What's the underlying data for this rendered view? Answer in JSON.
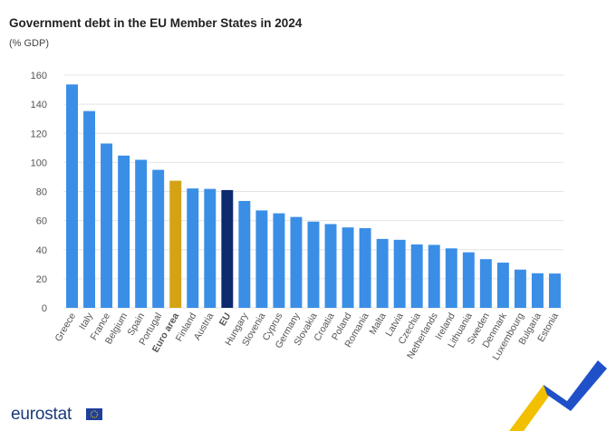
{
  "title": "Government debt in the EU Member States in 2024",
  "subtitle": "(% GDP)",
  "logo": "eurostat",
  "colors": {
    "default_bar": "#3a8ee6",
    "euro_area_bar": "#d3a314",
    "eu_bar": "#0e2a6e",
    "grid": "#e4e4e4",
    "axis_text": "#555555",
    "accent_yellow": "#f2c000",
    "accent_blue": "#1f50c8"
  },
  "chart_data": {
    "type": "bar",
    "ylim": [
      0,
      160
    ],
    "yticks": [
      0,
      20,
      40,
      60,
      80,
      100,
      120,
      140,
      160
    ],
    "grid": true,
    "categories": [
      "Greece",
      "Italy",
      "France",
      "Belgium",
      "Spain",
      "Portugal",
      "Euro area",
      "Finland",
      "Austria",
      "EU",
      "Hungary",
      "Slovenia",
      "Cyprus",
      "Germany",
      "Slovakia",
      "Croatia",
      "Poland",
      "Romania",
      "Malta",
      "Latvia",
      "Czechia",
      "Netherlands",
      "Ireland",
      "Lithuania",
      "Sweden",
      "Denmark",
      "Luxembourg",
      "Bulgaria",
      "Estonia"
    ],
    "values": [
      153.6,
      135.3,
      113.0,
      104.7,
      101.8,
      94.9,
      87.4,
      82.1,
      81.8,
      81.0,
      73.5,
      67.0,
      65.0,
      62.5,
      59.3,
      57.6,
      55.3,
      54.8,
      47.4,
      46.8,
      43.6,
      43.3,
      40.9,
      38.2,
      33.5,
      31.1,
      26.3,
      23.8,
      23.6
    ],
    "highlight": {
      "Euro area": "euro_area",
      "EU": "eu"
    }
  }
}
